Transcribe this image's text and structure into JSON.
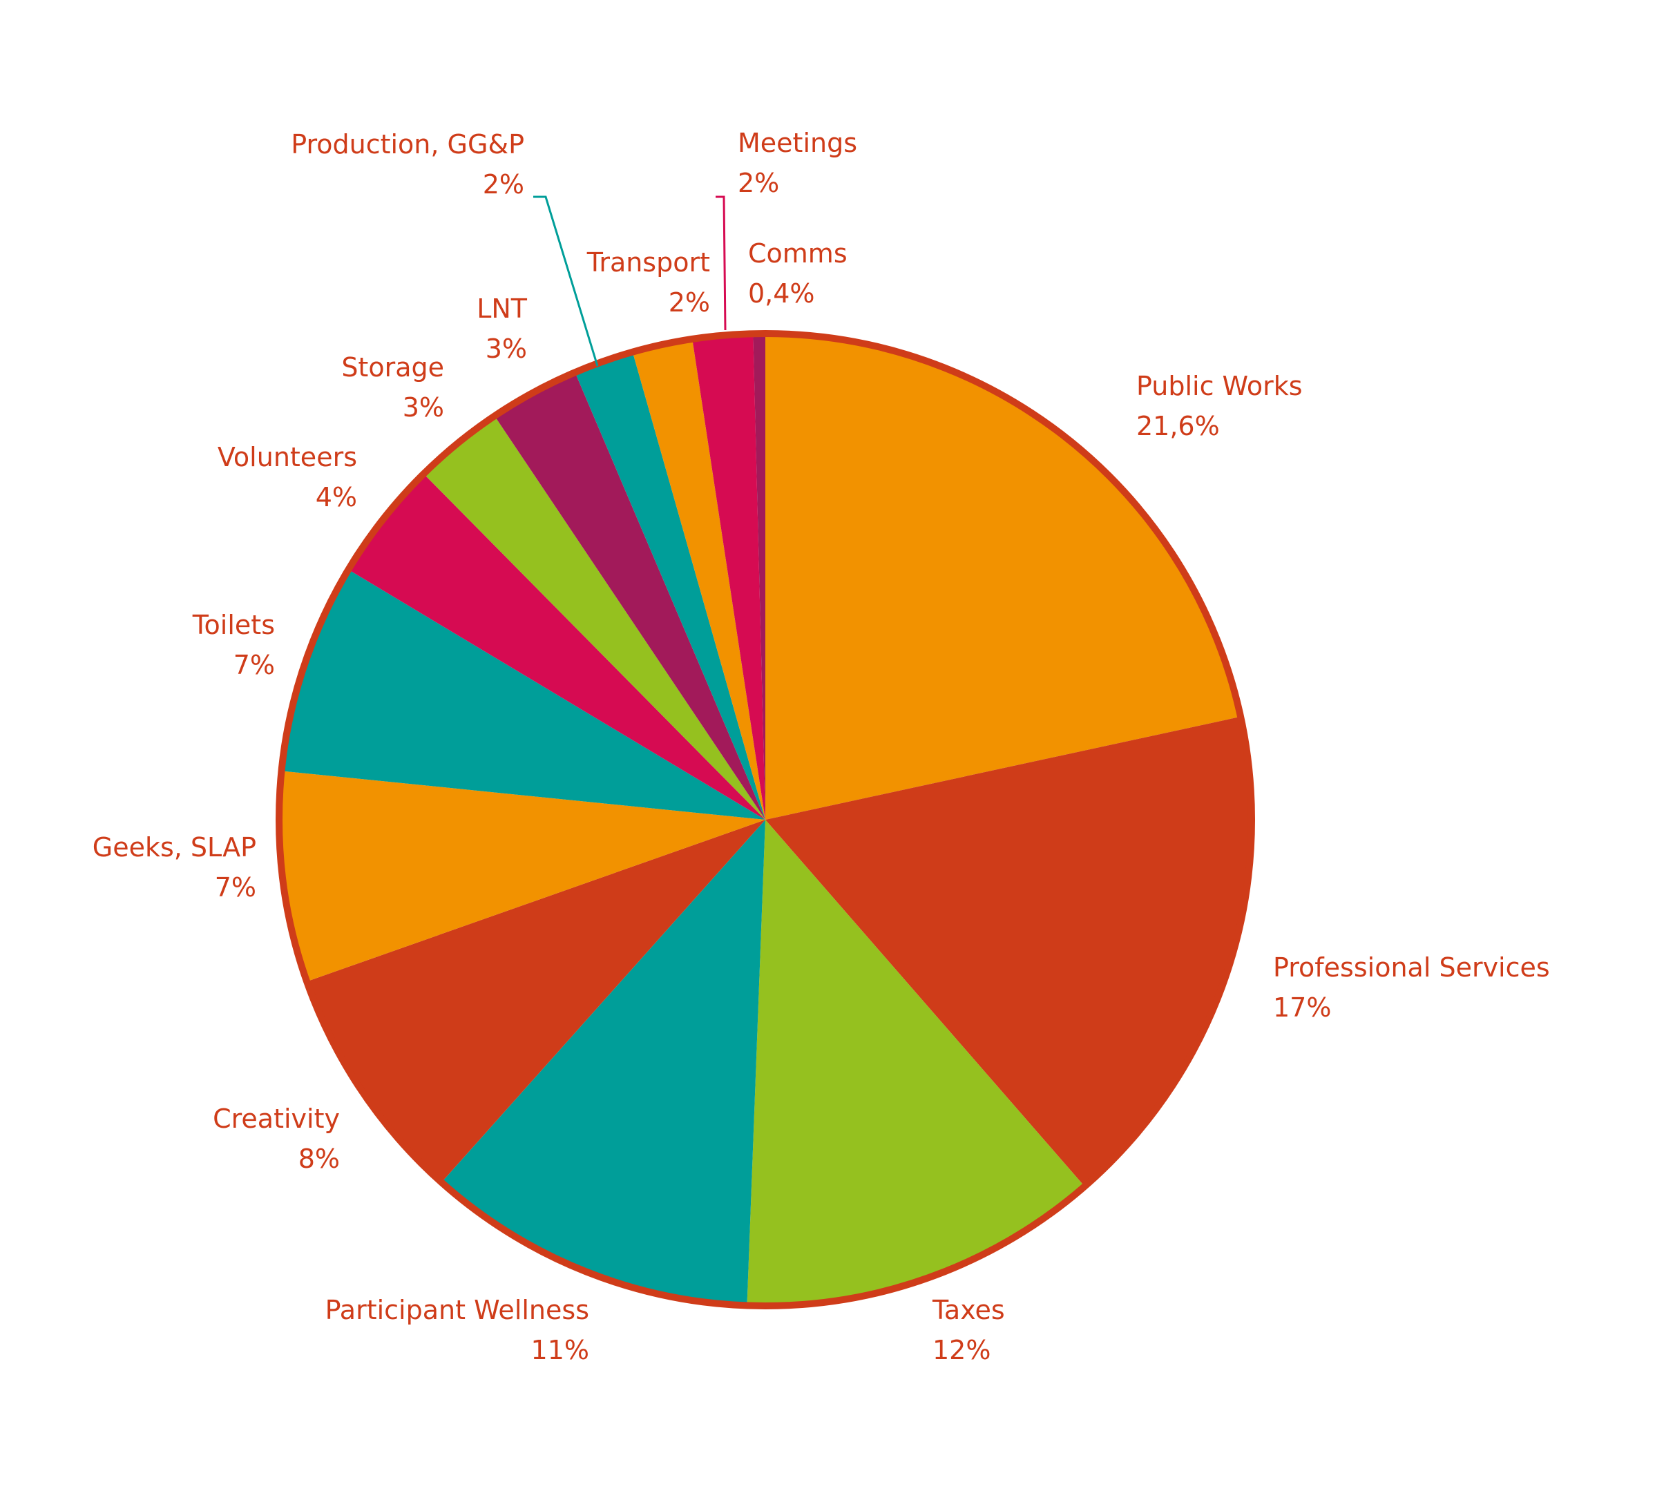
{
  "chart_data": {
    "type": "pie",
    "start": "top",
    "direction": "clockwise",
    "border_color": "#cf3c19",
    "slices": [
      {
        "label": "Public Works",
        "value_label": "21,6%",
        "value": 21.6,
        "color": "#f29200"
      },
      {
        "label": "Professional Services",
        "value_label": "17%",
        "value": 17,
        "color": "#cf3c19"
      },
      {
        "label": "Taxes",
        "value_label": "12%",
        "value": 12,
        "color": "#95c11f"
      },
      {
        "label": "Participant Wellness",
        "value_label": "11%",
        "value": 11,
        "color": "#009e99"
      },
      {
        "label": "Creativity",
        "value_label": "8%",
        "value": 8,
        "color": "#cf3c19"
      },
      {
        "label": "Geeks, SLAP",
        "value_label": "7%",
        "value": 7,
        "color": "#f29200"
      },
      {
        "label": "Toilets",
        "value_label": "7%",
        "value": 7,
        "color": "#009e99"
      },
      {
        "label": "Volunteers",
        "value_label": "4%",
        "value": 4,
        "color": "#d60b52"
      },
      {
        "label": "Storage",
        "value_label": "3%",
        "value": 3,
        "color": "#95c11f"
      },
      {
        "label": "LNT",
        "value_label": "3%",
        "value": 3,
        "color": "#a21a5a"
      },
      {
        "label": "Production, GG&P",
        "value_label": "2%",
        "value": 2,
        "color": "#009e99"
      },
      {
        "label": "Transport",
        "value_label": "2%",
        "value": 2,
        "color": "#f29200"
      },
      {
        "label": "Meetings",
        "value_label": "2%",
        "value": 2,
        "color": "#d60b52"
      },
      {
        "label": "Comms",
        "value_label": "0,4%",
        "value": 0.4,
        "color": "#a21a5a"
      }
    ]
  }
}
